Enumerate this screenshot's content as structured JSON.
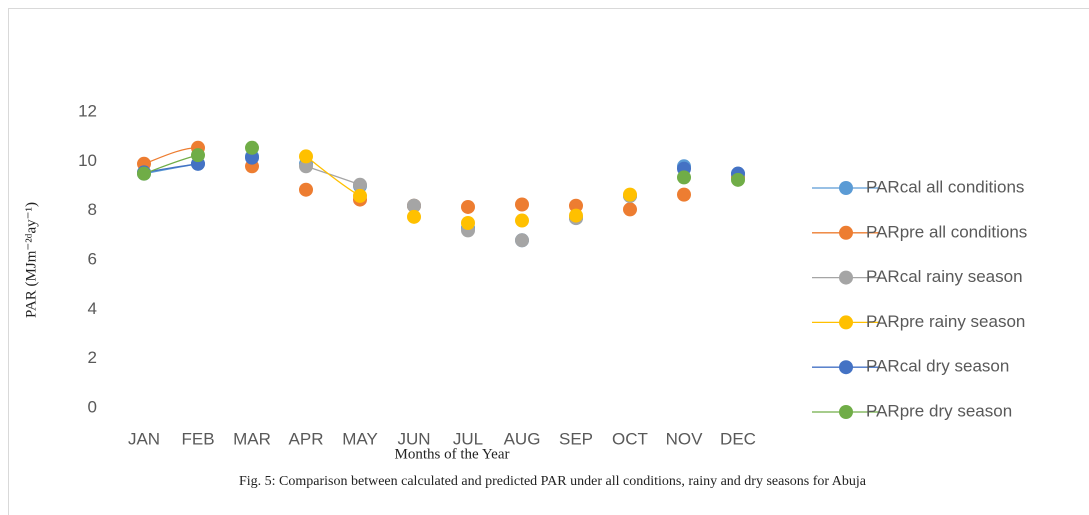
{
  "chart_data": {
    "type": "line",
    "y_label": "PAR (MJm⁻²ᵈay⁻¹)",
    "x_label": "Months of the Year",
    "caption": "Fig. 5: Comparison between calculated and predicted PAR under all conditions, rainy and dry seasons for Abuja",
    "categories": [
      "JAN",
      "FEB",
      "MAR",
      "APR",
      "MAY",
      "JUN",
      "JUL",
      "AUG",
      "SEP",
      "OCT",
      "NOV",
      "DEC"
    ],
    "ylim": [
      0,
      12
    ],
    "yticks": [
      0,
      2,
      4,
      6,
      8,
      10,
      12
    ],
    "grid": false,
    "legend": "right",
    "series": [
      {
        "name": "PARcal all conditions",
        "color": "#5b9bd5",
        "values": [
          9.5,
          9.9,
          10.2,
          9.9,
          9.0,
          8.2,
          7.3,
          6.8,
          7.7,
          8.6,
          9.8,
          9.5
        ]
      },
      {
        "name": "PARpre all conditions",
        "color": "#ed7d31",
        "values": [
          9.9,
          10.55,
          9.8,
          8.85,
          8.45,
          8.2,
          8.15,
          8.25,
          8.2,
          8.05,
          8.65,
          9.35
        ]
      },
      {
        "name": "PARcal rainy season",
        "color": "#a5a5a5",
        "values": [
          null,
          null,
          null,
          9.8,
          9.05,
          8.2,
          7.2,
          6.8,
          7.7,
          8.6,
          null,
          null
        ]
      },
      {
        "name": "PARpre rainy season",
        "color": "#ffc000",
        "values": [
          null,
          null,
          null,
          10.2,
          8.6,
          7.75,
          7.5,
          7.6,
          7.8,
          8.65,
          null,
          null
        ]
      },
      {
        "name": "PARcal dry season",
        "color": "#4472c4",
        "values": [
          9.55,
          9.9,
          10.15,
          null,
          null,
          null,
          null,
          null,
          null,
          null,
          9.7,
          9.5
        ]
      },
      {
        "name": "PARpre dry season",
        "color": "#70ad47",
        "values": [
          9.5,
          10.25,
          10.55,
          null,
          null,
          null,
          null,
          null,
          null,
          null,
          9.35,
          9.25
        ]
      }
    ]
  }
}
